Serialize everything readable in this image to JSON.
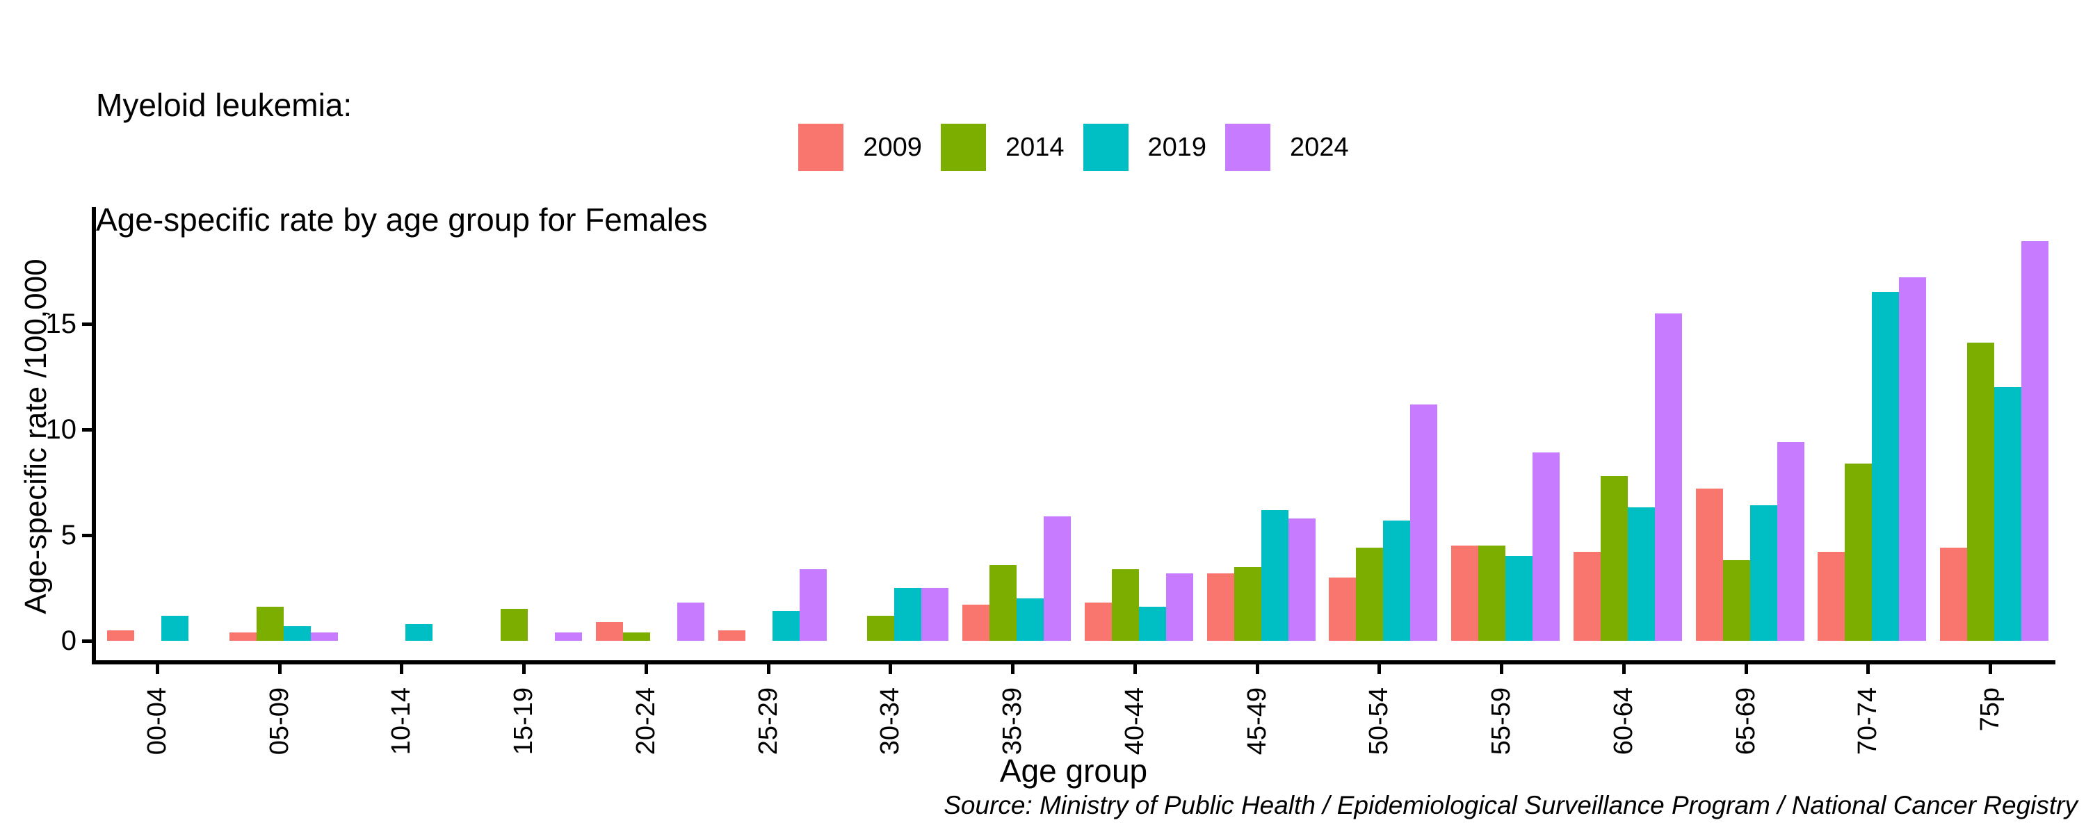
{
  "page": {
    "background": "#ffffff",
    "text_color": "#000000"
  },
  "title": {
    "line1": "Myeloid leukemia:",
    "line2": "Age-specific rate by age group for Females"
  },
  "axes": {
    "y_title": "Age-specific rate /100,000",
    "x_title": "Age group"
  },
  "source_note": "Source: Ministry of Public Health / Epidemiological Surveillance Program / National Cancer Registry",
  "chart_data": {
    "type": "bar",
    "title": "Myeloid leukemia: Age-specific rate by age group for Females",
    "xlabel": "Age group",
    "ylabel": "Age-specific rate /100,000",
    "ylim": [
      0,
      19.5
    ],
    "yticks": [
      0,
      5,
      10,
      15
    ],
    "grid": false,
    "legend_position": "top-center",
    "bar_layout": "grouped-dodge",
    "categories": [
      "00-04",
      "05-09",
      "10-14",
      "15-19",
      "20-24",
      "25-29",
      "30-34",
      "35-39",
      "40-44",
      "45-49",
      "50-54",
      "55-59",
      "60-64",
      "65-69",
      "70-74",
      "75p"
    ],
    "series": [
      {
        "name": "2009",
        "color": "#F8766D",
        "values": [
          0.5,
          0.4,
          0,
          0,
          0.9,
          0.5,
          0,
          1.7,
          1.8,
          3.2,
          3.0,
          4.5,
          4.2,
          7.2,
          4.2,
          4.4
        ]
      },
      {
        "name": "2014",
        "color": "#7CAE00",
        "values": [
          0,
          1.6,
          0,
          1.5,
          0.4,
          0,
          1.2,
          3.6,
          3.4,
          3.5,
          4.4,
          4.5,
          7.8,
          3.8,
          8.4,
          14.1
        ]
      },
      {
        "name": "2019",
        "color": "#00BFC4",
        "values": [
          1.2,
          0.7,
          0.8,
          0,
          0,
          1.4,
          2.5,
          2.0,
          1.6,
          6.2,
          5.7,
          4.0,
          6.3,
          6.4,
          16.5,
          12.0
        ]
      },
      {
        "name": "2024",
        "color": "#C77CFF",
        "values": [
          0,
          0.4,
          0,
          0.4,
          1.8,
          3.4,
          2.5,
          5.9,
          3.2,
          5.8,
          11.2,
          8.9,
          15.5,
          9.4,
          17.2,
          18.9
        ]
      }
    ]
  }
}
